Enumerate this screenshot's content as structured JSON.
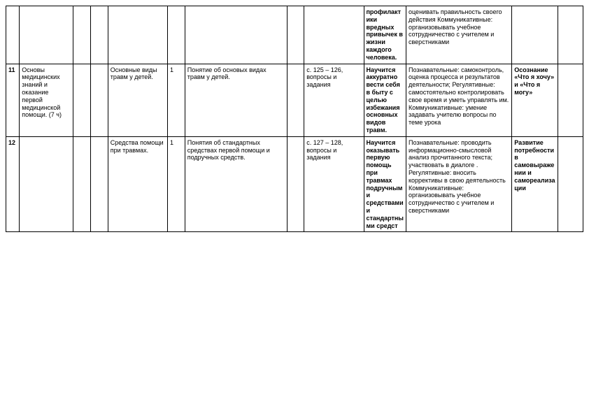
{
  "rows": [
    {
      "num": "",
      "section": "",
      "topic": "",
      "hours": "",
      "concept": "",
      "homework": "",
      "goal": "профилактики вредных привычек в жизни каждого человека.",
      "uud": "оценивать правильность своего действия\nКоммуникативные: организовывать учебное сотрудничество с учителем и сверстниками",
      "meta": ""
    },
    {
      "num": "11",
      "section": "Основы медицинских знаний и оказание первой медицинской помощи. (7 ч)",
      "topic": "Основные виды травм у детей.",
      "hours": "1",
      "concept": "Понятие об основых видах травм у детей.",
      "homework": "с. 125 – 126, вопросы и задания",
      "goal": "Научится аккуратно вести себя в быту с целью избежания основных видов травм.",
      "uud": "Познавательные: самоконтроль, оценка процесса и результатов деятельности;\nРегулятивные: самостоятельно контролировать свое время и уметь управлять им.\nКоммуникативные: умение задавать учителю вопросы по теме урока",
      "meta": "Осознание «Что я хочу» и «Что я могу»"
    },
    {
      "num": "12",
      "section": "",
      "topic": "Средства помощи при травмах.",
      "hours": "1",
      "concept": "Понятия об стандартных средствах первой помощи и подручных средств.",
      "homework": "с. 127 – 128, вопросы и задания",
      "goal": "Научится оказывать первую помощь при травмах подручными средствами и стандартными средст",
      "uud": "Познавательные: проводить информационно-смысловой анализ прочитанного текста; участвовать в диалоге\n.\nРегулятивные: вносить коррективы в свою деятельность\nКоммуникативные: организовывать учебное сотрудничество с учителем и сверстниками",
      "meta": "Развитие потребности в самовыражении и самореализации"
    }
  ]
}
